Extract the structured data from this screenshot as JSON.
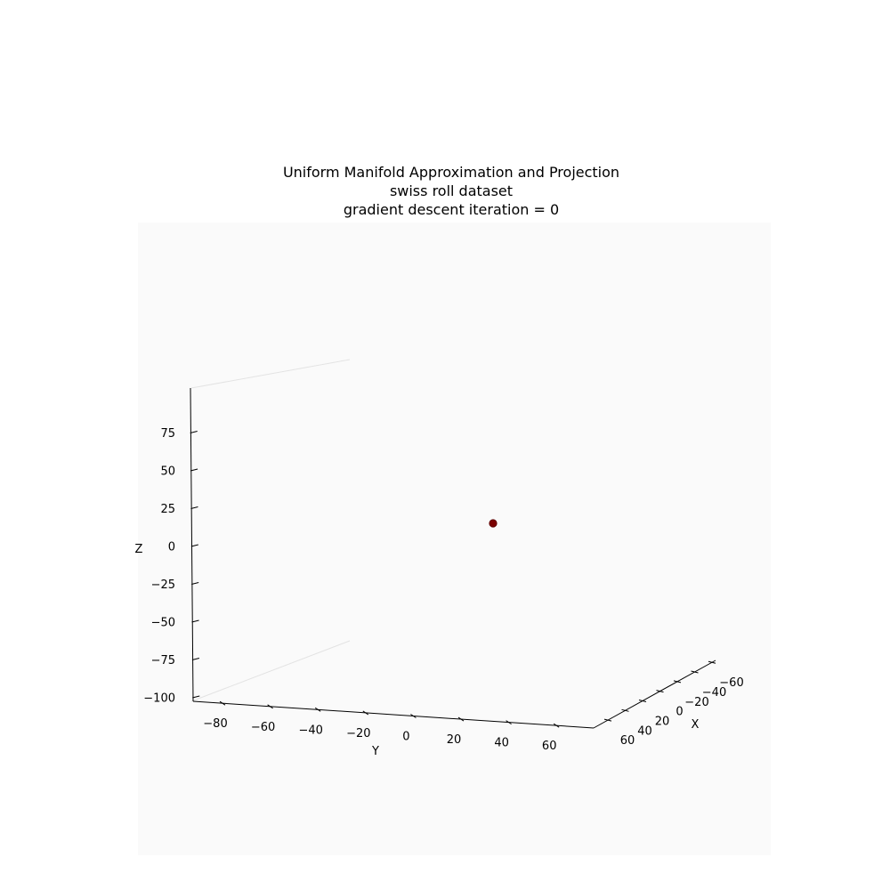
{
  "chart_data": {
    "type": "scatter",
    "projection": "3d",
    "title_lines": [
      "Uniform Manifold Approximation and Projection",
      "swiss roll dataset",
      "gradient descent iteration = 0"
    ],
    "xlabel": "X",
    "ylabel": "Y",
    "zlabel": "Z",
    "x_ticks": [
      "60",
      "40",
      "20",
      "0",
      "−20",
      "−40",
      "−60"
    ],
    "y_ticks": [
      "−80",
      "−60",
      "−40",
      "−20",
      "0",
      "20",
      "40",
      "60"
    ],
    "z_ticks": [
      "75",
      "50",
      "25",
      "0",
      "−25",
      "−50",
      "−75",
      "−100"
    ],
    "points": [
      {
        "x": 0,
        "y": 0,
        "z": 0,
        "color": "#7a0000"
      }
    ],
    "grid": false,
    "pane_color": "#fafafa"
  }
}
